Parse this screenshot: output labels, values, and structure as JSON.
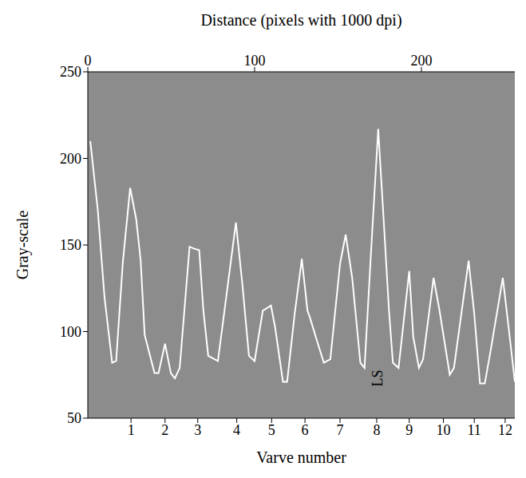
{
  "chart_data": {
    "type": "line",
    "x_label": "Distance (pixels with 1000 dpi)",
    "y_label": "Gray-scale",
    "x2_label": "Varve number",
    "xlim": [
      0,
      256
    ],
    "xticks": [
      0,
      100,
      200
    ],
    "ylim": [
      50,
      250
    ],
    "yticks": [
      50,
      100,
      150,
      200,
      250
    ],
    "x2ticks": [
      {
        "value": 25.9,
        "label": "1"
      },
      {
        "value": 46.3,
        "label": "2"
      },
      {
        "value": 65.9,
        "label": "3"
      },
      {
        "value": 89.3,
        "label": "4"
      },
      {
        "value": 110.2,
        "label": "5"
      },
      {
        "value": 130.2,
        "label": "6"
      },
      {
        "value": 151.2,
        "label": "7"
      },
      {
        "value": 173.2,
        "label": "8"
      },
      {
        "value": 192.7,
        "label": "9"
      },
      {
        "value": 213.2,
        "label": "10"
      },
      {
        "value": 231.7,
        "label": "11"
      },
      {
        "value": 250.2,
        "label": "12"
      }
    ],
    "grid": false,
    "color": "#ffffff",
    "x": [
      1.5,
      6,
      10,
      14.6,
      17,
      21,
      25.4,
      29,
      31.7,
      34.1,
      40,
      42.4,
      46.3,
      49.8,
      52.2,
      55.1,
      61,
      63.4,
      66.8,
      69.3,
      72.2,
      78,
      83,
      88.8,
      92.7,
      96.6,
      100,
      104.9,
      109.8,
      112.2,
      117,
      119.5,
      124,
      128.3,
      131.7,
      133.2,
      137.6,
      141.5,
      145.4,
      151.2,
      154.6,
      158.5,
      163.4,
      165.9,
      169.8,
      174.1,
      177.1,
      180.5,
      182.9,
      186.3,
      192.7,
      195.1,
      198.5,
      201,
      207.3,
      210.7,
      217,
      219.5,
      228.3,
      231.7,
      235.1,
      238,
      241.5,
      248.8,
      252.2,
      256
    ],
    "values": [
      210,
      170,
      120,
      82,
      83,
      140,
      183,
      165,
      141,
      98,
      76,
      76,
      93,
      76,
      73,
      79,
      149,
      148,
      147,
      112,
      86,
      83,
      120,
      163,
      127,
      86,
      83,
      112,
      115,
      103,
      71,
      71,
      110,
      142,
      112,
      108,
      94,
      82,
      84,
      139,
      156,
      131,
      82,
      79,
      146,
      217,
      169,
      113,
      82,
      79,
      135,
      97,
      79,
      84,
      131,
      113,
      75,
      79,
      141,
      110,
      70,
      70,
      89,
      131,
      103,
      71
    ],
    "annotations": [
      {
        "text": "LS",
        "x": 173.5,
        "y": 73
      }
    ]
  }
}
